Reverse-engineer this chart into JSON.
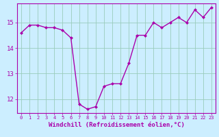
{
  "x": [
    0,
    1,
    2,
    3,
    4,
    5,
    6,
    7,
    8,
    9,
    10,
    11,
    12,
    13,
    14,
    15,
    16,
    17,
    18,
    19,
    20,
    21,
    22,
    23
  ],
  "y": [
    14.6,
    14.9,
    14.9,
    14.8,
    14.8,
    14.7,
    14.4,
    11.8,
    11.6,
    11.7,
    12.5,
    12.6,
    12.6,
    13.4,
    14.5,
    14.5,
    15.0,
    14.8,
    15.0,
    15.2,
    15.0,
    15.5,
    15.2,
    15.6
  ],
  "line_color": "#aa00aa",
  "marker": "D",
  "marker_size": 2,
  "bg_color": "#cceeff",
  "grid_color": "#99ccbb",
  "xlabel": "Windchill (Refroidissement éolien,°C)",
  "ylim": [
    11.45,
    15.75
  ],
  "yticks": [
    12,
    13,
    14,
    15
  ],
  "xlim": [
    -0.5,
    23.5
  ],
  "xticks": [
    0,
    1,
    2,
    3,
    4,
    5,
    6,
    7,
    8,
    9,
    10,
    11,
    12,
    13,
    14,
    15,
    16,
    17,
    18,
    19,
    20,
    21,
    22,
    23
  ],
  "xtick_fontsize": 5.0,
  "ytick_fontsize": 6.5,
  "xlabel_fontsize": 6.5,
  "line_width": 1.0,
  "spine_color": "#aa00aa"
}
